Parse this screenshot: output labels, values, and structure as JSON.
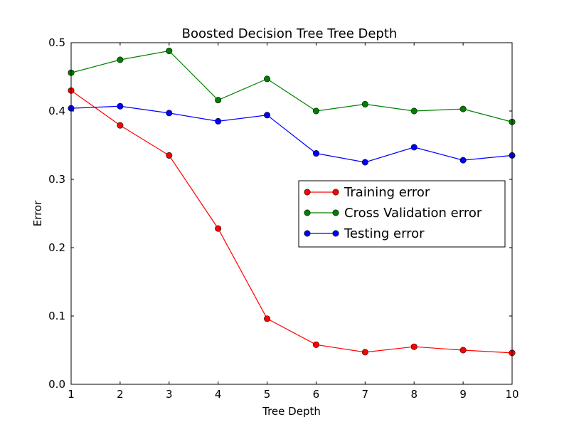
{
  "chart_data": {
    "type": "line",
    "title": "Boosted Decision Tree Tree Depth",
    "xlabel": "Tree Depth",
    "ylabel": "Error",
    "x": [
      1,
      2,
      3,
      4,
      5,
      6,
      7,
      8,
      9,
      10
    ],
    "xlim": [
      1,
      10
    ],
    "ylim": [
      0.0,
      0.5
    ],
    "xticks": [
      "1",
      "2",
      "3",
      "4",
      "5",
      "6",
      "7",
      "8",
      "9",
      "10"
    ],
    "yticks": [
      "0.0",
      "0.1",
      "0.2",
      "0.3",
      "0.4",
      "0.5"
    ],
    "grid": false,
    "legend_position": "center-right",
    "series": [
      {
        "name": "Training error",
        "color": "#ff0000",
        "values": [
          0.43,
          0.379,
          0.335,
          0.228,
          0.096,
          0.058,
          0.047,
          0.055,
          0.05,
          0.046
        ]
      },
      {
        "name": "Cross Validation error",
        "color": "#008000",
        "values": [
          0.456,
          0.475,
          0.488,
          0.416,
          0.447,
          0.4,
          0.41,
          0.4,
          0.403,
          0.384
        ]
      },
      {
        "name": "Testing error",
        "color": "#0000ff",
        "values": [
          0.404,
          0.407,
          0.397,
          0.385,
          0.394,
          0.338,
          0.325,
          0.347,
          0.328,
          0.335
        ]
      }
    ]
  }
}
